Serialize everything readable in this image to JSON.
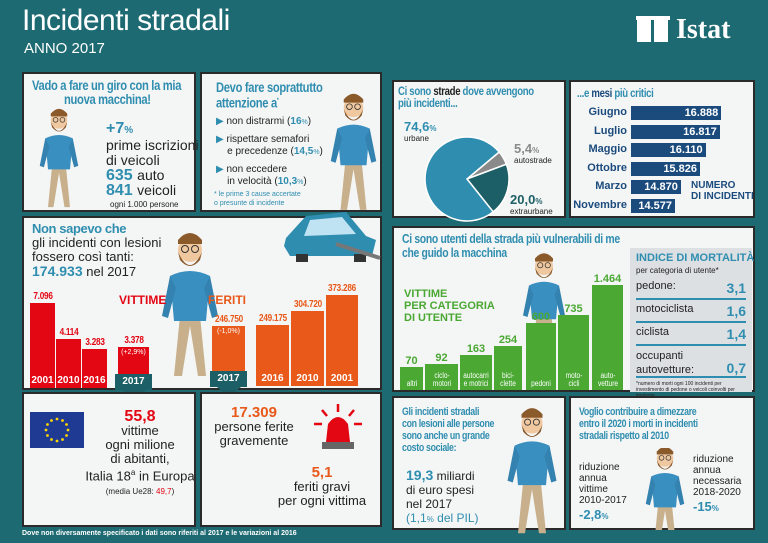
{
  "header": {
    "title": "Incidenti stradali",
    "subtitle": "ANNO 2017",
    "logo_text": "Istat"
  },
  "colors": {
    "background": "#1d6a72",
    "vittime": "#e30613",
    "feriti": "#e8591a",
    "months": "#1b4b7d",
    "users": "#4aa833",
    "accent": "#2f8eb0"
  },
  "car_panel": {
    "title_line1": "Vado a fare un giro con la mia",
    "title_line2": "nuova macchina!",
    "growth": "+7",
    "growth_unit": "%",
    "growth_label_1": "prime iscrizioni",
    "growth_label_2": "di veicoli",
    "auto_value": "635",
    "auto_label": "auto",
    "veicoli_value": "841",
    "veicoli_label": "veicoli",
    "per": "ogni 1.000 persone"
  },
  "attention_panel": {
    "title_line1": "Devo fare soprattutto",
    "title_line2": "attenzione a",
    "star": "*",
    "items": [
      {
        "text_1": "non distrarmi (",
        "value": "16",
        "unit": "%",
        "text_2": ")"
      },
      {
        "text_0": "rispettare semafori",
        "text_1": "e precedenze (",
        "value": "14,5",
        "unit": "%",
        "text_2": ")"
      },
      {
        "text_0": "non eccedere",
        "text_1": "in velocità (",
        "value": "10,3",
        "unit": "%",
        "text_2": ")"
      }
    ],
    "note_1": "* le prime 3 cause accertate",
    "note_2": "o presunte di incidente"
  },
  "injury_panel": {
    "intro_1": "Non sapevo che",
    "intro_2": "gli incidenti con lesioni",
    "intro_3": "fossero così tanti:",
    "total": "174.933",
    "total_suffix": "nel 2017",
    "vittime": {
      "label": "VITTIME",
      "bars": [
        {
          "year": "2001",
          "value": 7096,
          "label": "7.096"
        },
        {
          "year": "2010",
          "value": 4114,
          "label": "4.114"
        },
        {
          "year": "2016",
          "value": 3283,
          "label": "3.283"
        },
        {
          "year": "2017",
          "value": 3378,
          "label": "3.378",
          "change": "(+2,9%)"
        }
      ]
    },
    "feriti": {
      "label": "FERITI",
      "bars": [
        {
          "year": "2017",
          "value": 246750,
          "label": "246.750",
          "change": "(-1,0%)"
        },
        {
          "year": "2016",
          "value": 249175,
          "label": "249.175"
        },
        {
          "year": "2010",
          "value": 304720,
          "label": "304.720"
        },
        {
          "year": "2001",
          "value": 373286,
          "label": "373.286"
        }
      ]
    }
  },
  "europe_panel": {
    "value": "55,8",
    "line1": "vittime",
    "line2": "ogni milione",
    "line3": "di abitanti,",
    "line4_a": "Italia 18",
    "line4_sup": "a",
    "line4_b": " in Europa",
    "media_label": "(media Ue28: ",
    "media_value": "49,7",
    "media_close": ")"
  },
  "serious_panel": {
    "value": "17.309",
    "line1": "persone ferite",
    "line2": "gravemente",
    "ratio": "5,1",
    "ratio_line1": "feriti gravi",
    "ratio_line2": "per ogni vittima"
  },
  "footer": "Dove non diversamente specificato i dati sono riferiti al 2017 e le variazioni al 2016",
  "roads_panel": {
    "title_a": "Ci sono ",
    "title_b": "strade",
    "title_c": " dove avvengono",
    "title_d": "più incidenti...",
    "slices": [
      {
        "label": "urbane",
        "value": 74.6,
        "text": "74,6",
        "color": "#2f8eb0"
      },
      {
        "label": "autostrade",
        "value": 5.4,
        "text": "5,4",
        "color": "#8a8a8a"
      },
      {
        "label": "extraurbane",
        "value": 20.0,
        "text": "20,0",
        "color": "#1d5f66"
      }
    ],
    "unit": "%"
  },
  "months_panel": {
    "title_a": "...e ",
    "title_b": "mesi",
    "title_c": " più critici",
    "legend_1": "NUMERO",
    "legend_2": "DI INCIDENTI",
    "months": [
      {
        "name": "Giugno",
        "value": 16888,
        "label": "16.888"
      },
      {
        "name": "Luglio",
        "value": 16817,
        "label": "16.817"
      },
      {
        "name": "Maggio",
        "value": 16110,
        "label": "16.110"
      },
      {
        "name": "Ottobre",
        "value": 15826,
        "label": "15.826"
      },
      {
        "name": "Marzo",
        "value": 14870,
        "label": "14.870"
      },
      {
        "name": "Novembre",
        "value": 14577,
        "label": "14.577"
      }
    ]
  },
  "users_panel": {
    "title_1": "Ci sono utenti della strada più vulnerabili di me",
    "title_2": "che guido la macchina",
    "chart_label_1": "VITTIME",
    "chart_label_2": "PER CATEGORIA",
    "chart_label_3": "DI UTENTE",
    "bars": [
      {
        "l1": "altri",
        "l2": "",
        "value": 70,
        "label": "70"
      },
      {
        "l1": "ciclo-",
        "l2": "motori",
        "value": 92,
        "label": "92"
      },
      {
        "l1": "autocarri",
        "l2": "e motrici",
        "value": 163,
        "label": "163"
      },
      {
        "l1": "bici-",
        "l2": "clette",
        "value": 254,
        "label": "254"
      },
      {
        "l1": "pedoni",
        "l2": "",
        "value": 600,
        "label": "600"
      },
      {
        "l1": "moto-",
        "l2": "cicli",
        "value": 735,
        "label": "735"
      },
      {
        "l1": "auto-",
        "l2": "vetture",
        "value": 1464,
        "label": "1.464"
      }
    ],
    "index": {
      "title": "INDICE DI MORTALITÀ",
      "subtitle": "per categoria di utente*",
      "rows": [
        {
          "label": "pedone:",
          "value": "3,1"
        },
        {
          "label": "motociclista",
          "value": "1,6"
        },
        {
          "label": "ciclista",
          "value": "1,4"
        },
        {
          "label": "occupanti autovetture:",
          "value": "0,7"
        }
      ],
      "note": "*numero di morti ogni 100 incidenti per investimento di pedone o veicoli coinvolti per tipologia"
    }
  },
  "cost_panel": {
    "title_1": "Gli incidenti stradali",
    "title_2": "con lesioni alle persone",
    "title_3": "sono anche un grande",
    "title_4": "costo sociale:",
    "value": "19,3",
    "value_suffix": "miliardi",
    "line2": "di euro spesi",
    "line3": "nel 2017",
    "pil": "(1,1",
    "pil_unit": "%",
    "pil_rest": " del PIL)"
  },
  "goal_panel": {
    "title_1": "Voglio contribuire a dimezzare",
    "title_2": "entro il 2020 i morti in incidenti",
    "title_3": "stradali rispetto al 2010",
    "left": {
      "l1": "riduzione",
      "l2": "annua",
      "l3": "vittime",
      "l4": "2010-2017",
      "value": "-2,8",
      "unit": "%"
    },
    "right": {
      "l1": "riduzione",
      "l2": "annua",
      "l3": "necessaria",
      "l4": "2018-2020",
      "value": "-15",
      "unit": "%"
    }
  }
}
